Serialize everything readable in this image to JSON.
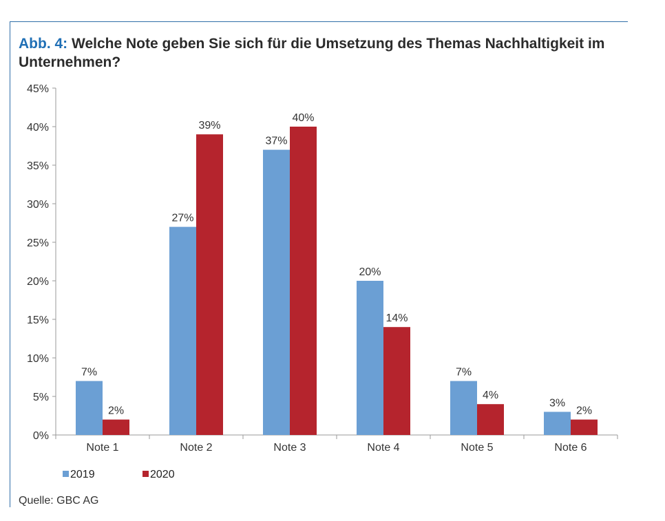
{
  "title_prefix": "Abb. 4:",
  "title_main": " Welche Note geben Sie sich für die Umsetzung des Themas Nachhaltigkeit im Unternehmen?",
  "source": "Quelle: GBC AG",
  "colors": {
    "2019": "#6b9fd4",
    "2020": "#b5242d",
    "accent": "#1f6fb5",
    "frame": "#2f6ea8"
  },
  "chart_data": {
    "type": "bar",
    "categories": [
      "Note 1",
      "Note 2",
      "Note 3",
      "Note 4",
      "Note 5",
      "Note 6"
    ],
    "series": [
      {
        "name": "2019",
        "values": [
          7,
          27,
          37,
          20,
          7,
          3
        ],
        "labels": [
          "7%",
          "27%",
          "37%",
          "20%",
          "7%",
          "3%"
        ]
      },
      {
        "name": "2020",
        "values": [
          2,
          39,
          40,
          14,
          4,
          2
        ],
        "labels": [
          "2%",
          "39%",
          "40%",
          "14%",
          "4%",
          "2%"
        ]
      }
    ],
    "ylim": [
      0,
      45
    ],
    "yticks": [
      "0%",
      "5%",
      "10%",
      "15%",
      "20%",
      "25%",
      "30%",
      "35%",
      "40%",
      "45%"
    ],
    "grid": false,
    "legend_position": "bottom-left"
  }
}
